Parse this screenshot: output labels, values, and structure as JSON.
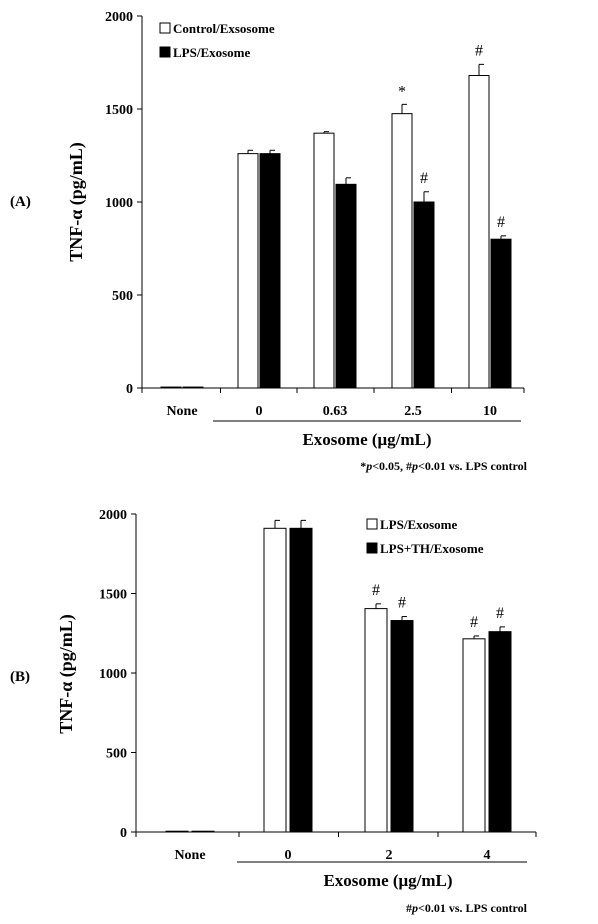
{
  "chart_data": [
    {
      "type": "bar",
      "panel_label": "(A)",
      "ylabel": "TNF-α (pg/mL)",
      "xlabel": "Exosome (μg/mL)",
      "ylim": [
        0,
        2000
      ],
      "yticks": [
        0,
        500,
        1000,
        1500,
        2000
      ],
      "grid": false,
      "legend_position": "top-left",
      "categories": [
        "None",
        "0",
        "0.63",
        "2.5",
        "10"
      ],
      "series": [
        {
          "name": "Control/Exsosome",
          "fill": "#ffffff",
          "values": [
            5,
            1260,
            1370,
            1475,
            1680
          ],
          "errors": [
            0,
            18,
            8,
            50,
            60
          ]
        },
        {
          "name": "LPS/Exosome",
          "fill": "#000000",
          "values": [
            5,
            1260,
            1095,
            1000,
            800
          ],
          "errors": [
            0,
            18,
            35,
            55,
            18
          ]
        }
      ],
      "markers": [
        {
          "category": 3,
          "series": 0,
          "text": "*"
        },
        {
          "category": 4,
          "series": 0,
          "text": "#"
        },
        {
          "category": 3,
          "series": 1,
          "text": "#"
        },
        {
          "category": 4,
          "series": 1,
          "text": "#"
        }
      ],
      "footnote": {
        "p1": "p",
        "t1": "<0.05, #",
        "p2": "p",
        "t2": "<0.01 vs. LPS control"
      }
    },
    {
      "type": "bar",
      "panel_label": "(B)",
      "ylabel": "TNF-α (pg/mL)",
      "xlabel": "Exosome (μg/mL)",
      "ylim": [
        0,
        2000
      ],
      "yticks": [
        0,
        500,
        1000,
        1500,
        2000
      ],
      "grid": false,
      "legend_position": "top-right",
      "categories": [
        "None",
        "0",
        "2",
        "4"
      ],
      "series": [
        {
          "name": "LPS/Exosome",
          "fill": "#ffffff",
          "values": [
            5,
            1910,
            1405,
            1215
          ],
          "errors": [
            0,
            50,
            30,
            18
          ]
        },
        {
          "name": "LPS+TH/Exosome",
          "fill": "#000000",
          "values": [
            5,
            1910,
            1330,
            1260
          ],
          "errors": [
            0,
            50,
            25,
            30
          ]
        }
      ],
      "markers": [
        {
          "category": 2,
          "series": 0,
          "text": "#"
        },
        {
          "category": 2,
          "series": 1,
          "text": "#"
        },
        {
          "category": 3,
          "series": 0,
          "text": "#"
        },
        {
          "category": 3,
          "series": 1,
          "text": "#"
        }
      ],
      "footnote": {
        "p1": "#",
        "t1": "",
        "p2": "p",
        "t2": "<0.01 vs. LPS control"
      }
    }
  ]
}
